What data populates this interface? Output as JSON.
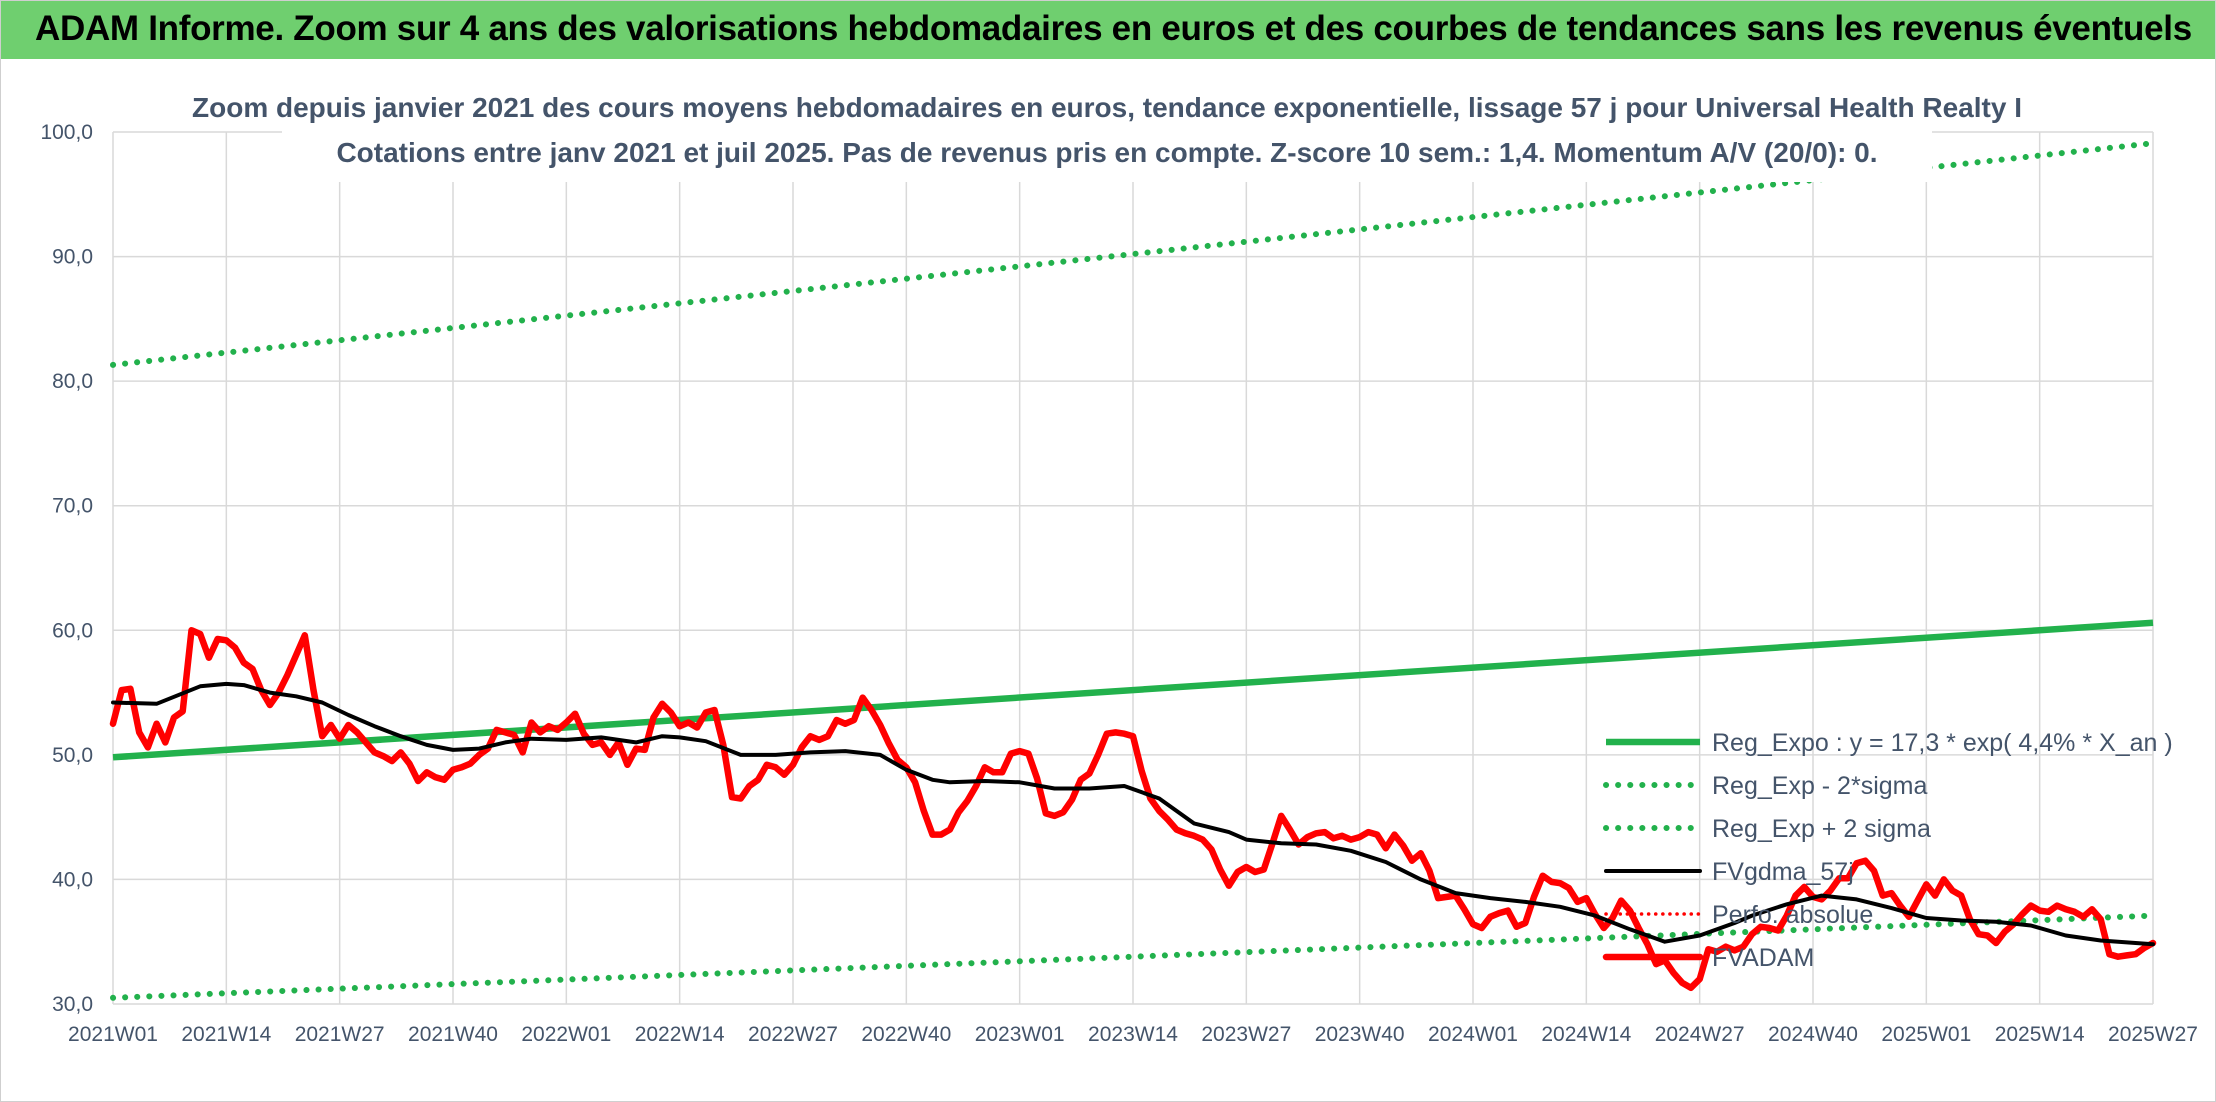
{
  "header": {
    "title": "ADAM Informe. Zoom sur 4 ans des valorisations hebdomadaires en euros et des courbes de tendances sans les revenus éventuels"
  },
  "colors": {
    "banner": "#6fcf6f",
    "reg_expo": "#22b14c",
    "sigma": "#22b14c",
    "moving_average": "#000000",
    "perf_absolue": "#ff0000",
    "fvadam": "#ff0000",
    "grid": "#d9d9d9",
    "text": "#44546a"
  },
  "chart_data": {
    "type": "line",
    "title_line1": "Zoom depuis janvier 2021 des cours moyens hebdomadaires en euros, tendance exponentielle, lissage 57 j pour Universal Health Realty I",
    "title_line2": "Cotations entre janv 2021 et juil 2025. Pas de revenus pris en compte. Z-score 10 sem.: 1,4. Momentum A/V (20/0): 0.",
    "xlabel": "",
    "ylabel": "",
    "ylim": [
      30,
      100
    ],
    "yticks": [
      "30,0",
      "40,0",
      "50,0",
      "60,0",
      "70,0",
      "80,0",
      "90,0",
      "100,0"
    ],
    "x_tick_labels": [
      "2021W01",
      "2021W14",
      "2021W27",
      "2021W40",
      "2022W01",
      "2022W14",
      "2022W27",
      "2022W40",
      "2023W01",
      "2023W14",
      "2023W27",
      "2023W40",
      "2024W01",
      "2024W14",
      "2024W27",
      "2024W40",
      "2025W01",
      "2025W14",
      "2025W27"
    ],
    "grid": true,
    "legend_position": "bottom-right",
    "series": [
      {
        "name": "Reg_Expo : y = 17,3 * exp( 4,4% *  X_an )",
        "style": "solid-thick",
        "x_week_index": [
          0,
          234
        ],
        "values": [
          49.8,
          60.6
        ]
      },
      {
        "name": "Reg_Exp - 2*sigma",
        "style": "dotted",
        "x_week_index": [
          0,
          234
        ],
        "values": [
          30.5,
          37.1
        ]
      },
      {
        "name": "Reg_Exp + 2 sigma",
        "style": "dotted",
        "x_week_index": [
          0,
          234
        ],
        "values": [
          81.3,
          99.1
        ]
      },
      {
        "name": "FVgdma_57j",
        "style": "solid",
        "x_week_index": [
          0,
          5,
          10,
          13,
          15,
          18,
          21,
          24,
          27,
          30,
          33,
          36,
          39,
          42,
          45,
          48,
          52,
          56,
          60,
          63,
          65,
          68,
          72,
          76,
          80,
          84,
          88,
          91,
          94,
          96,
          100,
          104,
          108,
          112,
          116,
          120,
          124,
          128,
          130,
          134,
          138,
          142,
          146,
          150,
          154,
          158,
          162,
          166,
          170,
          174,
          178,
          182,
          186,
          188,
          192,
          196,
          200,
          204,
          208,
          212,
          216,
          220,
          224,
          228,
          232,
          234
        ],
        "values": [
          54.2,
          54.1,
          55.5,
          55.7,
          55.6,
          55.0,
          54.7,
          54.2,
          53.2,
          52.3,
          51.5,
          50.8,
          50.4,
          50.5,
          51.0,
          51.3,
          51.2,
          51.4,
          51.0,
          51.5,
          51.4,
          51.1,
          50.0,
          50.0,
          50.2,
          50.3,
          50.0,
          48.8,
          48.0,
          47.8,
          47.9,
          47.8,
          47.3,
          47.3,
          47.5,
          46.5,
          44.5,
          43.8,
          43.2,
          42.9,
          42.8,
          42.3,
          41.4,
          40.0,
          38.9,
          38.5,
          38.2,
          37.8,
          37.1,
          36.0,
          35.0,
          35.5,
          36.5,
          37.1,
          38.0,
          38.7,
          38.4,
          37.7,
          36.9,
          36.7,
          36.6,
          36.3,
          35.5,
          35.1,
          34.9,
          34.8
        ]
      },
      {
        "name": "Perfo. absolue",
        "style": "dotted-red",
        "x_week_index": [],
        "values": []
      },
      {
        "name": "FVADAM",
        "style": "solid-thick",
        "x_week_index": [
          0,
          1,
          2,
          3,
          4,
          5,
          6,
          7,
          8,
          9,
          10,
          11,
          12,
          13,
          14,
          15,
          16,
          17,
          18,
          19,
          20,
          21,
          22,
          23,
          24,
          25,
          26,
          27,
          28,
          29,
          30,
          31,
          32,
          33,
          34,
          35,
          36,
          37,
          38,
          39,
          40,
          41,
          42,
          43,
          44,
          45,
          46,
          47,
          48,
          49,
          50,
          51,
          52,
          53,
          54,
          55,
          56,
          57,
          58,
          59,
          60,
          61,
          62,
          63,
          64,
          65,
          66,
          67,
          68,
          69,
          70,
          71,
          72,
          73,
          74,
          75,
          76,
          77,
          78,
          79,
          80,
          81,
          82,
          83,
          84,
          85,
          86,
          87,
          88,
          89,
          90,
          91,
          92,
          93,
          94,
          95,
          96,
          97,
          98,
          99,
          100,
          101,
          102,
          103,
          104,
          105,
          106,
          107,
          108,
          109,
          110,
          111,
          112,
          113,
          114,
          115,
          116,
          117,
          118,
          119,
          120,
          121,
          122,
          123,
          124,
          125,
          126,
          127,
          128,
          129,
          130,
          131,
          132,
          133,
          134,
          135,
          136,
          137,
          138,
          139,
          140,
          141,
          142,
          143,
          144,
          145,
          146,
          147,
          148,
          149,
          150,
          151,
          152,
          153,
          154,
          155,
          156,
          157,
          158,
          159,
          160,
          161,
          162,
          163,
          164,
          165,
          166,
          167,
          168,
          169,
          170,
          171,
          172,
          173,
          174,
          175,
          176,
          177,
          178,
          179,
          180,
          181,
          182,
          183,
          184,
          185,
          186,
          187,
          188,
          189,
          190,
          191,
          192,
          193,
          194,
          195,
          196,
          197,
          198,
          199,
          200,
          201,
          202,
          203,
          204,
          205,
          206,
          207,
          208,
          209,
          210,
          211,
          212,
          213,
          214,
          215,
          216,
          217,
          218,
          219,
          220,
          221,
          222,
          223,
          224,
          225,
          226,
          227,
          228,
          229,
          230,
          231,
          232,
          233,
          234
        ],
        "values": [
          52.5,
          55.2,
          55.3,
          51.8,
          50.6,
          52.5,
          51.0,
          53.0,
          53.5,
          60.0,
          59.7,
          57.8,
          59.3,
          59.2,
          58.6,
          57.4,
          56.9,
          55.2,
          54.0,
          55.0,
          56.4,
          58.0,
          59.6,
          55.2,
          51.5,
          52.4,
          51.3,
          52.4,
          51.8,
          51.0,
          50.2,
          49.9,
          49.5,
          50.2,
          49.3,
          47.9,
          48.6,
          48.2,
          48.0,
          48.8,
          49.0,
          49.3,
          50.0,
          50.5,
          52.0,
          51.8,
          51.6,
          50.2,
          52.6,
          51.8,
          52.3,
          52.0,
          52.6,
          53.3,
          51.7,
          50.8,
          51.0,
          50.0,
          51.0,
          49.2,
          50.5,
          50.4,
          53.0,
          54.1,
          53.4,
          52.3,
          52.6,
          52.2,
          53.4,
          53.6,
          50.8,
          46.6,
          46.5,
          47.5,
          48.0,
          49.2,
          49.0,
          48.4,
          49.2,
          50.6,
          51.5,
          51.2,
          51.5,
          52.8,
          52.5,
          52.8,
          54.6,
          53.6,
          52.4,
          50.9,
          49.6,
          49.0,
          47.8,
          45.5,
          43.6,
          43.6,
          44.0,
          45.4,
          46.3,
          47.5,
          49.0,
          48.6,
          48.6,
          50.1,
          50.3,
          50.1,
          48.1,
          45.3,
          45.1,
          45.4,
          46.4,
          48.0,
          48.5,
          50.0,
          51.7,
          51.8,
          51.7,
          51.5,
          48.7,
          46.5,
          45.5,
          44.8,
          44.0,
          43.7,
          43.5,
          43.2,
          42.4,
          40.8,
          39.5,
          40.6,
          41.0,
          40.6,
          40.8,
          42.9,
          45.1,
          44.0,
          42.8,
          43.4,
          43.7,
          43.8,
          43.3,
          43.5,
          43.2,
          43.4,
          43.8,
          43.6,
          42.5,
          43.6,
          42.7,
          41.5,
          42.1,
          40.7,
          38.5,
          38.6,
          38.7,
          37.6,
          36.4,
          36.1,
          37.0,
          37.3,
          37.5,
          36.2,
          36.5,
          38.6,
          40.3,
          39.8,
          39.7,
          39.3,
          38.2,
          38.5,
          37.2,
          36.1,
          36.9,
          38.3,
          37.5,
          36.1,
          34.8,
          33.2,
          33.5,
          32.5,
          31.7,
          31.3,
          32.0,
          34.4,
          34.2,
          34.6,
          34.3,
          34.6,
          35.6,
          36.2,
          36.1,
          35.9,
          37.1,
          38.7,
          39.4,
          38.6,
          38.4,
          39.1,
          40.1,
          40.1,
          41.3,
          41.5,
          40.7,
          38.7,
          38.9,
          37.9,
          37.0,
          38.3,
          39.6,
          38.7,
          40.0,
          39.1,
          38.7,
          36.8,
          35.6,
          35.5,
          34.9,
          35.8,
          36.4,
          37.2,
          37.9,
          37.5,
          37.4,
          37.9,
          37.6,
          37.4,
          37.0,
          37.6,
          36.8,
          34.0,
          33.8,
          33.9,
          34.0,
          34.5,
          34.9,
          34.5,
          34.4,
          34.6,
          34.8,
          35.0,
          34.6,
          34.4
        ]
      }
    ]
  }
}
